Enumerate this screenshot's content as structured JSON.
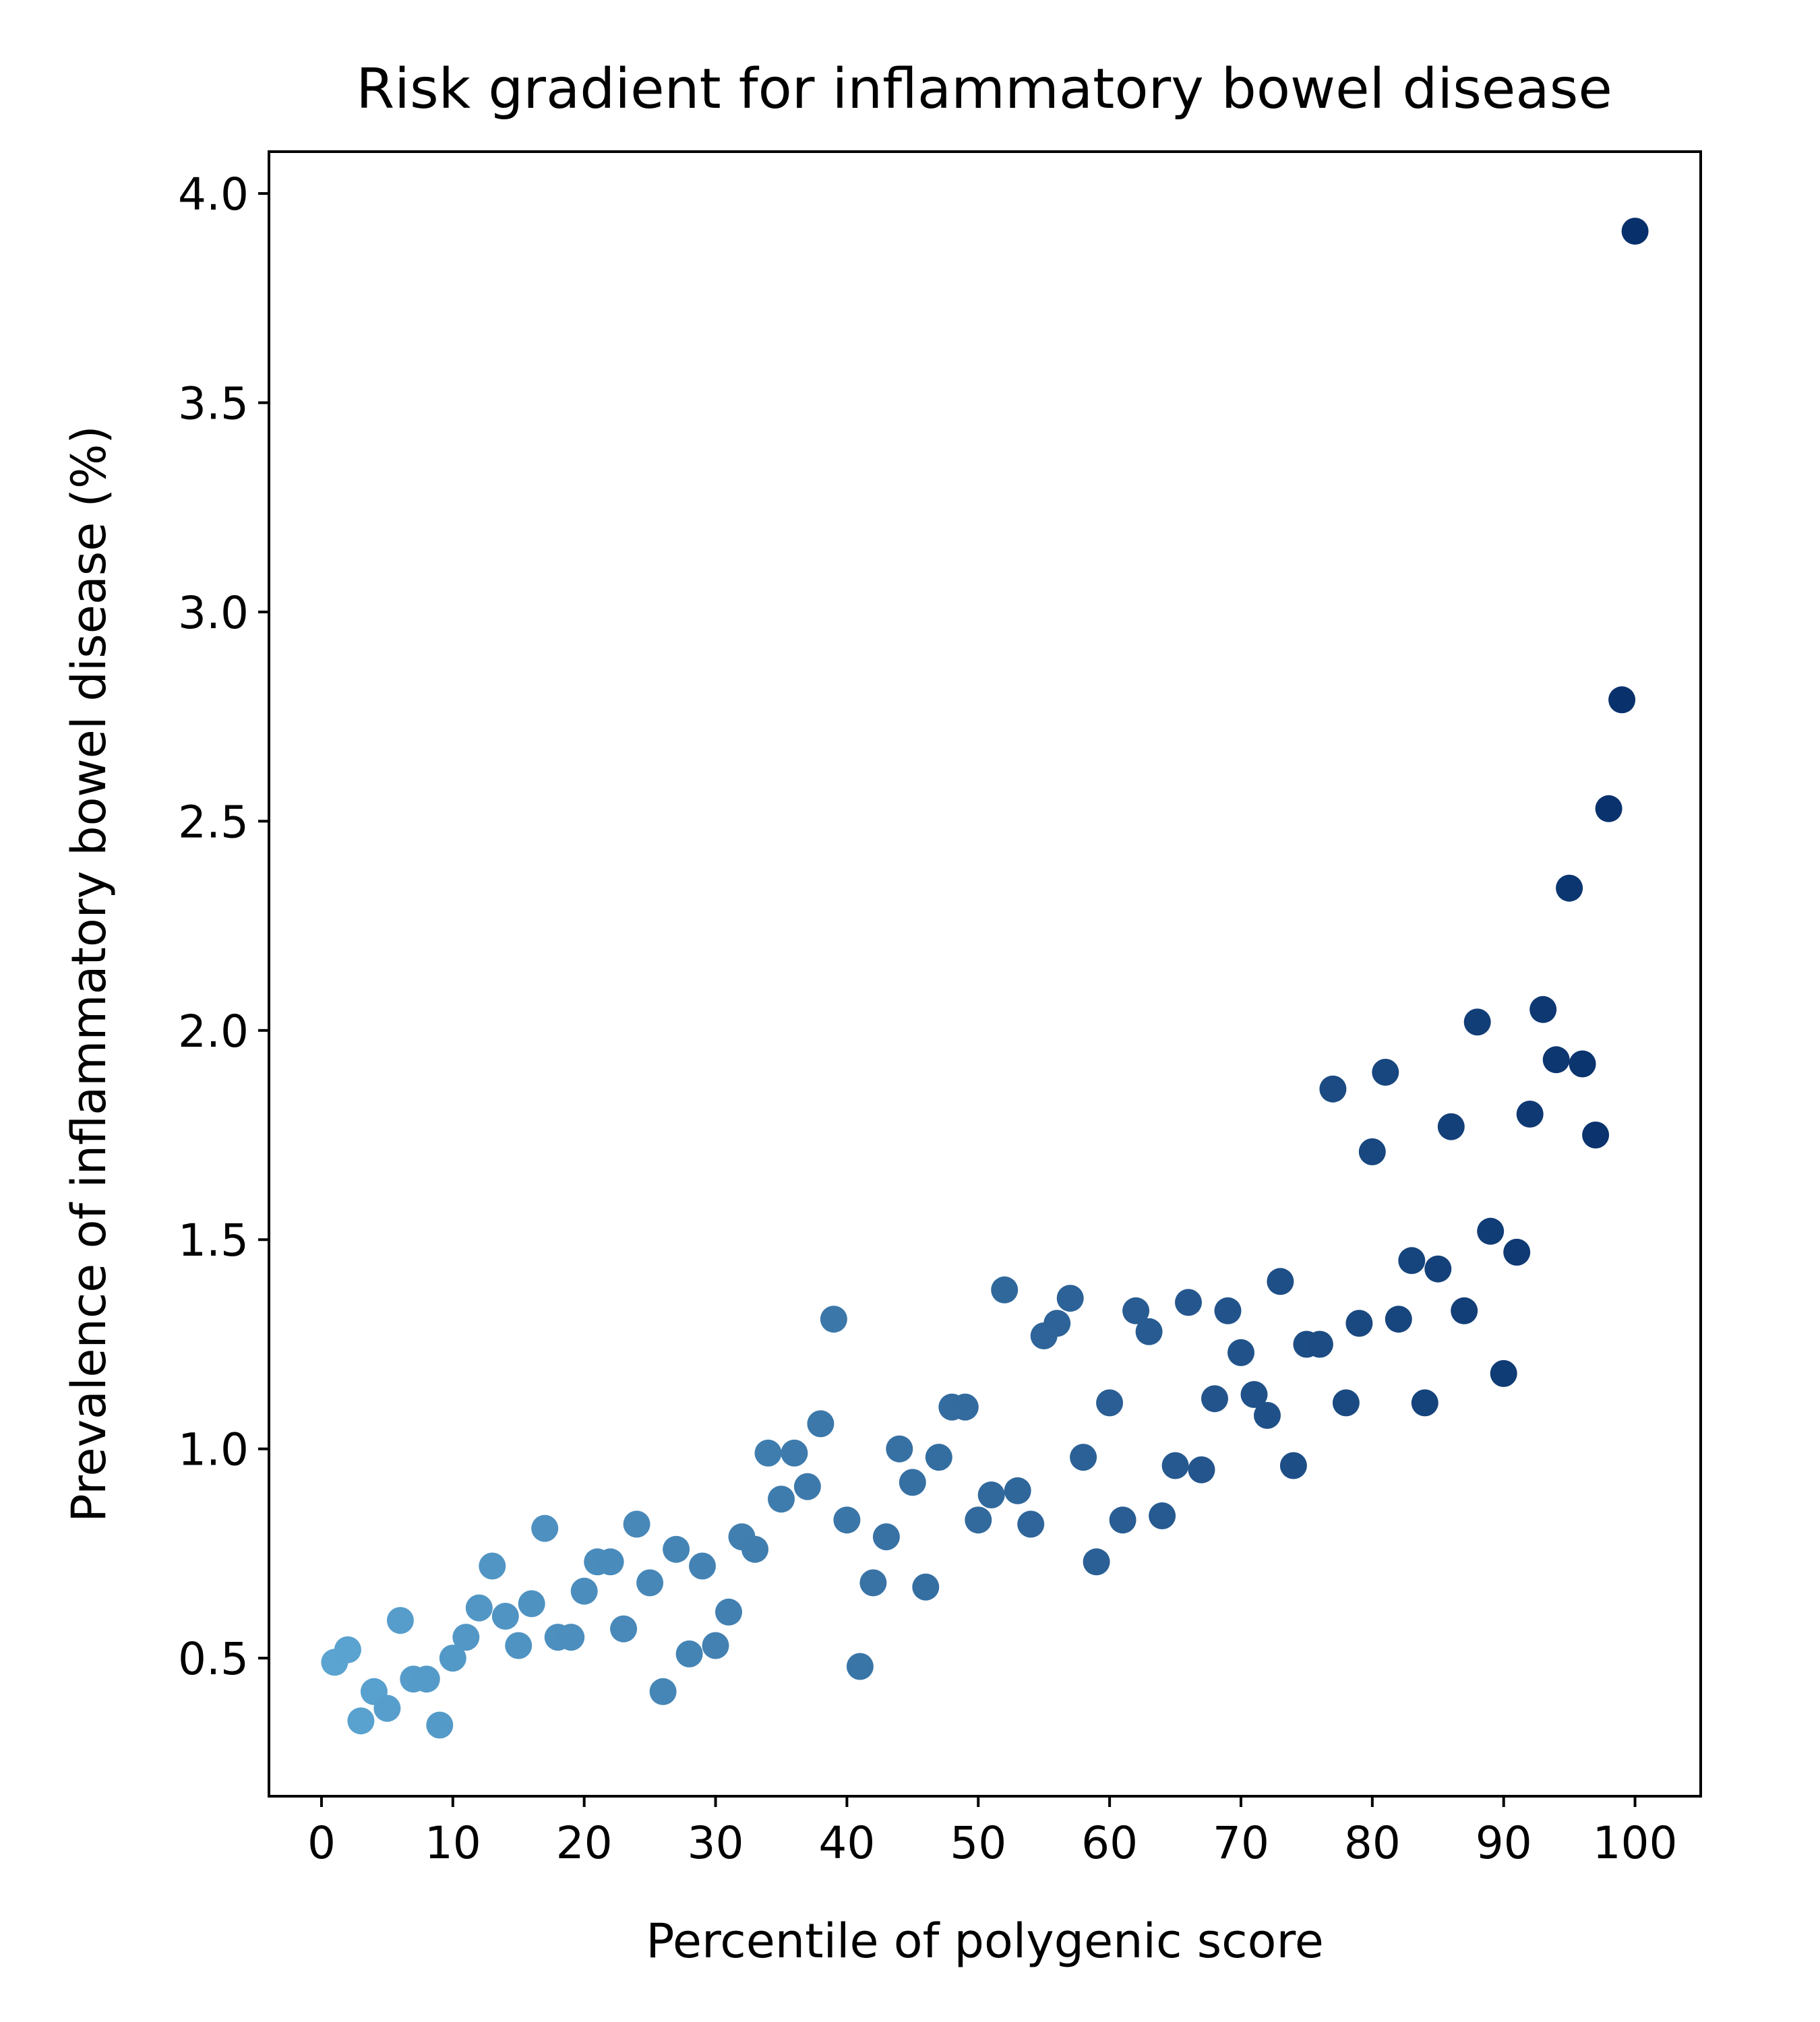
{
  "chart_data": {
    "type": "scatter",
    "title": "Risk gradient for inflammatory bowel disease",
    "xlabel": "Percentile of polygenic score",
    "ylabel": "Prevalence of inflammatory bowel disease (%)",
    "xlim": [
      -4,
      105
    ],
    "ylim": [
      0.17,
      4.1
    ],
    "xticks": [
      0,
      10,
      20,
      30,
      40,
      50,
      60,
      70,
      80,
      90,
      100
    ],
    "yticks": [
      0.5,
      1.0,
      1.5,
      2.0,
      2.5,
      3.0,
      3.5,
      4.0
    ],
    "xtick_labels": [
      "0",
      "10",
      "20",
      "30",
      "40",
      "50",
      "60",
      "70",
      "80",
      "90",
      "100"
    ],
    "ytick_labels": [
      "0.5",
      "1.0",
      "1.5",
      "2.0",
      "2.5",
      "3.0",
      "3.5",
      "4.0"
    ],
    "grid": false,
    "colormap": [
      "#5ba3d0",
      "#08306b"
    ],
    "x": [
      1,
      2,
      3,
      4,
      5,
      6,
      7,
      8,
      9,
      10,
      11,
      12,
      13,
      14,
      15,
      16,
      17,
      18,
      19,
      20,
      21,
      22,
      23,
      24,
      25,
      26,
      27,
      28,
      29,
      30,
      31,
      32,
      33,
      34,
      35,
      36,
      37,
      38,
      39,
      40,
      41,
      42,
      43,
      44,
      45,
      46,
      47,
      48,
      49,
      50,
      51,
      52,
      53,
      54,
      55,
      56,
      57,
      58,
      59,
      60,
      61,
      62,
      63,
      64,
      65,
      66,
      67,
      68,
      69,
      70,
      71,
      72,
      73,
      74,
      75,
      76,
      77,
      78,
      79,
      80,
      81,
      82,
      83,
      84,
      85,
      86,
      87,
      88,
      89,
      90,
      91,
      92,
      93,
      94,
      95,
      96,
      97,
      98,
      99,
      100
    ],
    "y": [
      0.49,
      0.52,
      0.35,
      0.42,
      0.38,
      0.59,
      0.45,
      0.45,
      0.34,
      0.5,
      0.55,
      0.62,
      0.72,
      0.6,
      0.53,
      0.63,
      0.81,
      0.55,
      0.55,
      0.66,
      0.73,
      0.73,
      0.57,
      0.82,
      0.68,
      0.42,
      0.76,
      0.51,
      0.72,
      0.53,
      0.61,
      0.79,
      0.76,
      0.99,
      0.88,
      0.99,
      0.91,
      1.06,
      1.31,
      0.83,
      0.48,
      0.68,
      0.79,
      1.0,
      0.92,
      0.67,
      0.98,
      1.1,
      1.1,
      0.83,
      0.89,
      1.38,
      0.9,
      0.82,
      1.27,
      1.3,
      1.36,
      0.98,
      0.73,
      1.11,
      0.83,
      1.33,
      1.28,
      0.84,
      0.96,
      1.35,
      0.95,
      1.12,
      1.33,
      1.23,
      1.13,
      1.08,
      1.4,
      0.96,
      1.25,
      1.25,
      1.86,
      1.11,
      1.3,
      1.71,
      1.9,
      1.31,
      1.45,
      1.11,
      1.43,
      1.77,
      1.33,
      2.02,
      1.52,
      1.18,
      1.47,
      1.8,
      2.05,
      1.93,
      2.34,
      1.92,
      1.75,
      2.53,
      2.79,
      3.91
    ]
  }
}
